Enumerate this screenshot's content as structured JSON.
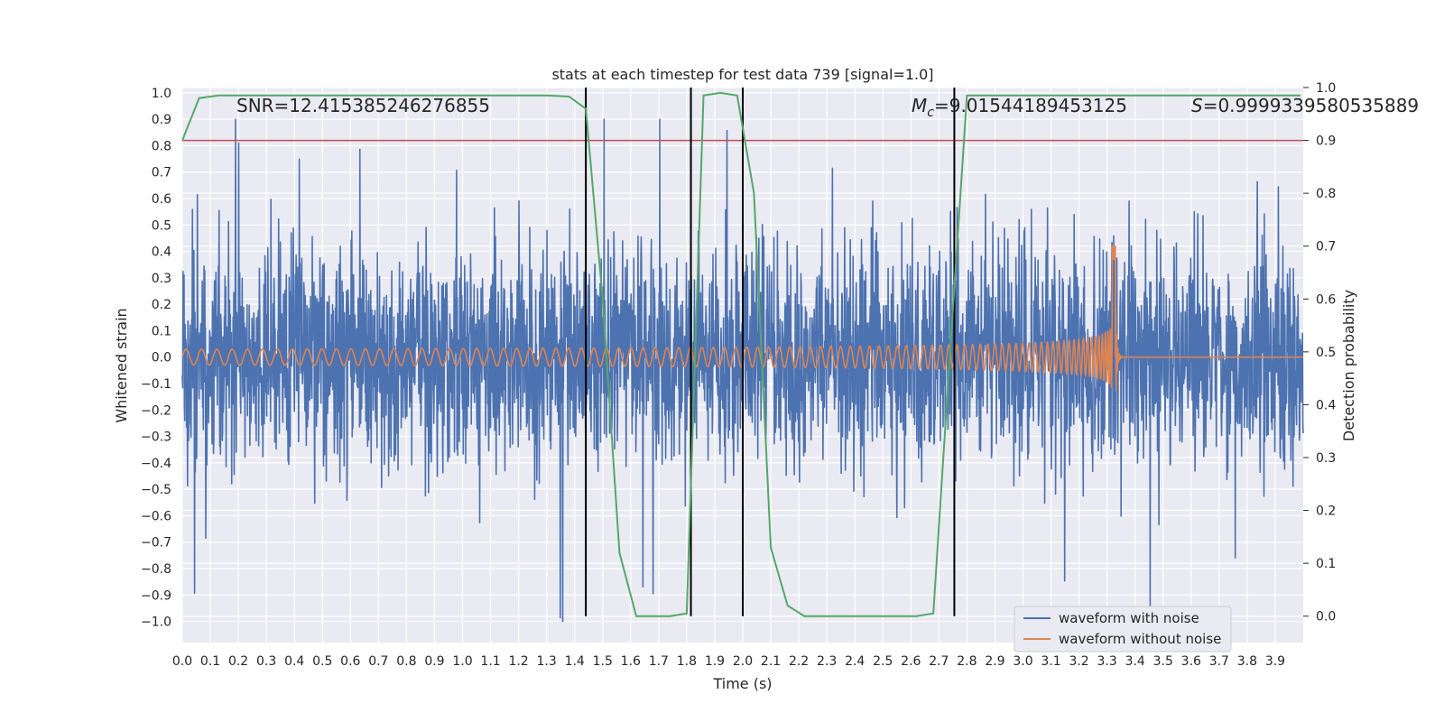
{
  "chart_data": {
    "type": "line",
    "title": "stats at each timestep for test data 739 [signal=1.0]",
    "xlabel": "Time (s)",
    "ylabel_left": "Whitened strain",
    "ylabel_right": "Detection probability",
    "xlim": [
      0.0,
      4.0
    ],
    "ylim_left": [
      -1.08,
      1.02
    ],
    "ylim_right": [
      -0.05,
      1.0
    ],
    "x_ticks": [
      "0.0",
      "0.1",
      "0.2",
      "0.3",
      "0.4",
      "0.5",
      "0.6",
      "0.7",
      "0.8",
      "0.9",
      "1.0",
      "1.1",
      "1.2",
      "1.3",
      "1.4",
      "1.5",
      "1.6",
      "1.7",
      "1.8",
      "1.9",
      "2.0",
      "2.1",
      "2.2",
      "2.3",
      "2.4",
      "2.5",
      "2.6",
      "2.7",
      "2.8",
      "2.9",
      "3.0",
      "3.1",
      "3.2",
      "3.3",
      "3.4",
      "3.5",
      "3.6",
      "3.7",
      "3.8",
      "3.9"
    ],
    "y_ticks_left": [
      "1.0",
      "0.9",
      "0.8",
      "0.7",
      "0.6",
      "0.5",
      "0.4",
      "0.3",
      "0.2",
      "0.1",
      "0.0",
      "−0.1",
      "−0.2",
      "−0.3",
      "−0.4",
      "−0.5",
      "−0.6",
      "−0.7",
      "−0.8",
      "−0.9",
      "−1.0"
    ],
    "y_ticks_right": [
      "1.0",
      "0.9",
      "0.8",
      "0.7",
      "0.6",
      "0.5",
      "0.4",
      "0.3",
      "0.2",
      "0.1",
      "0.0"
    ],
    "grid": true,
    "legend": {
      "position": "lower-right",
      "entries": [
        {
          "label": "waveform with noise",
          "color": "#4c72b0"
        },
        {
          "label": "waveform without noise",
          "color": "#dd8452"
        }
      ]
    },
    "annotations": {
      "snr": "SNR=12.415385246276855",
      "mc_symbol": "M",
      "mc_sub": "c",
      "mc_value": "=9.01544189453125",
      "s_symbol": "S",
      "s_value": "=0.9999339580535889"
    },
    "threshold": {
      "axis": "right",
      "value": 0.9,
      "color": "#c44e52"
    },
    "vertical_markers": [
      1.44,
      1.815,
      2.0,
      2.755
    ],
    "series": [
      {
        "name": "waveform with noise",
        "axis": "left",
        "color": "#4c72b0",
        "kind": "noise",
        "x_range": [
          0.0,
          4.0
        ],
        "amplitude_range": [
          -1.0,
          0.9
        ]
      },
      {
        "name": "waveform without noise",
        "axis": "left",
        "color": "#dd8452",
        "kind": "chirp",
        "merger_time": 3.33,
        "peak_value": 0.42,
        "min_value": -0.37
      },
      {
        "name": "detection probability",
        "axis": "right",
        "color": "#55a868",
        "x": [
          0.0,
          0.06,
          0.13,
          0.2,
          0.3,
          0.5,
          0.8,
          1.0,
          1.2,
          1.3,
          1.38,
          1.44,
          1.5,
          1.56,
          1.62,
          1.68,
          1.74,
          1.8,
          1.86,
          1.92,
          1.98,
          2.04,
          2.1,
          2.16,
          2.22,
          2.28,
          2.34,
          2.5,
          2.62,
          2.68,
          2.74,
          2.8,
          3.0,
          3.5,
          3.99
        ],
        "values": [
          0.9,
          0.98,
          0.985,
          0.985,
          0.985,
          0.985,
          0.985,
          0.985,
          0.985,
          0.985,
          0.983,
          0.96,
          0.6,
          0.12,
          0.0,
          0.0,
          0.0,
          0.005,
          0.985,
          0.99,
          0.985,
          0.8,
          0.13,
          0.02,
          0.0,
          0.0,
          0.0,
          0.0,
          0.0,
          0.005,
          0.5,
          0.985,
          0.985,
          0.985,
          0.985
        ]
      }
    ]
  }
}
